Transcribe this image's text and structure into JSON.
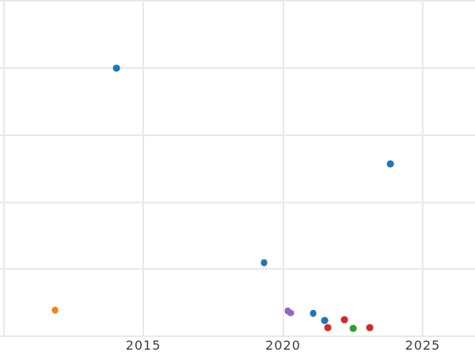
{
  "chart_data": {
    "type": "scatter",
    "title": "",
    "xlabel": "",
    "ylabel": "",
    "grid": true,
    "legend": false,
    "background_color": "#ffffff",
    "gridline_color": "#e9e9e9",
    "tick_label_color": "#3d3d3d",
    "marker_size_px": 8.8,
    "x_axis": {
      "range": [
        2009.87,
        2026.87
      ],
      "gridline_values": [
        2010,
        2015,
        2020,
        2025
      ],
      "ticks": [
        {
          "value": 2015,
          "label": "2015"
        },
        {
          "value": 2020,
          "label": "2020"
        },
        {
          "value": 2025,
          "label": "2025"
        }
      ]
    },
    "y_axis": {
      "range": [
        -0.29,
        5.01
      ],
      "gridline_values": [
        0,
        1,
        2,
        3,
        4,
        5
      ],
      "unlabeled": true,
      "note": "no y tick labels are visible in the image; y values expressed in gridline units (0 = bottom visible gridline, 5 = top visible gridline)"
    },
    "series_colors": {
      "blue": "#1f77b4",
      "orange": "#ff7f0e",
      "green": "#2ca02c",
      "red": "#d62728",
      "purple": "#9467bd"
    },
    "points": [
      {
        "x": 2014.03,
        "y": 4.0,
        "series": "blue"
      },
      {
        "x": 2011.84,
        "y": 0.39,
        "series": "orange"
      },
      {
        "x": 2019.32,
        "y": 1.1,
        "series": "blue"
      },
      {
        "x": 2023.84,
        "y": 2.57,
        "series": "blue"
      },
      {
        "x": 2020.17,
        "y": 0.38,
        "series": "purple"
      },
      {
        "x": 2020.27,
        "y": 0.35,
        "series": "purple"
      },
      {
        "x": 2021.08,
        "y": 0.345,
        "series": "blue"
      },
      {
        "x": 2021.49,
        "y": 0.24,
        "series": "blue"
      },
      {
        "x": 2021.61,
        "y": 0.135,
        "series": "red"
      },
      {
        "x": 2022.19,
        "y": 0.255,
        "series": "red"
      },
      {
        "x": 2022.5,
        "y": 0.125,
        "series": "green"
      },
      {
        "x": 2023.11,
        "y": 0.13,
        "series": "red"
      }
    ]
  }
}
